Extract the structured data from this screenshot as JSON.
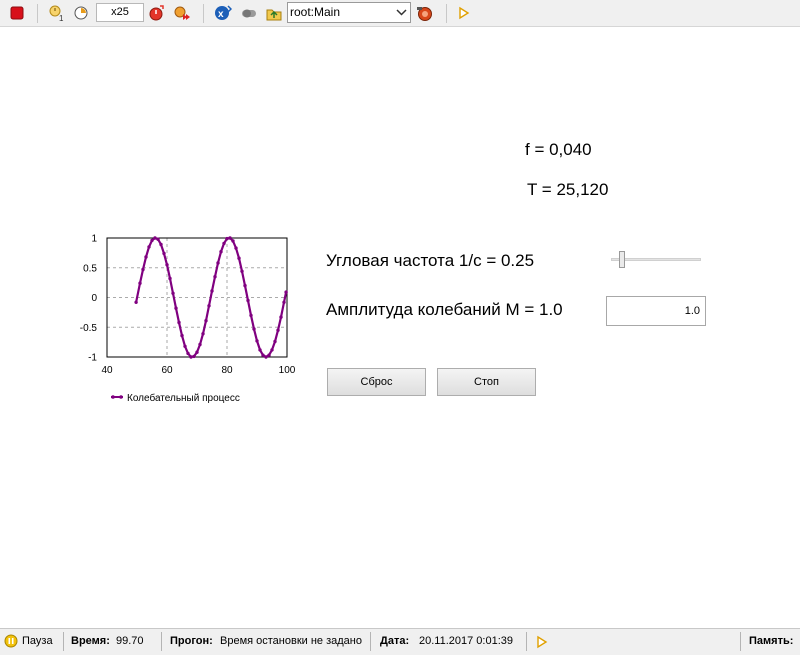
{
  "toolbar": {
    "speed": "x25",
    "agent": "root:Main",
    "icons": [
      "stop-icon",
      "run-until-icon",
      "step-icon",
      "speed-up-icon",
      "run-fast-icon",
      "navigate-to-agent-icon",
      "toggle-icon",
      "up-level-icon",
      "chevron-down-icon",
      "camera-icon",
      "play-icon"
    ]
  },
  "main": {
    "f_text": "f = 0,040",
    "T_text": "T = 25,120",
    "omega_label": "Угловая частота 1/с = 0.25",
    "amp_label": "Амплитуда колебаний М = 1.0",
    "amp_value": "1.0",
    "omega_slider_fraction": 0.1,
    "reset_label": "Сброс",
    "stop_label": "Стоп"
  },
  "chart_data": {
    "type": "line",
    "title": "",
    "xlabel": "",
    "ylabel": "",
    "xlim": [
      40,
      100
    ],
    "ylim": [
      -1,
      1
    ],
    "xticks": [
      "40",
      "60",
      "80",
      "100"
    ],
    "yticks": [
      "1",
      "0.5",
      "0",
      "-0.5",
      "-1"
    ],
    "grid": true,
    "legend": "bottom",
    "series": [
      {
        "name": "Колебательный процесс",
        "color": "#800080",
        "x": [
          49.7,
          51,
          52,
          53,
          54,
          55,
          56,
          57,
          58,
          59,
          60,
          61,
          62,
          63,
          64,
          65,
          66,
          67,
          68,
          69,
          70,
          71,
          72,
          73,
          74,
          75,
          76,
          77,
          78,
          79,
          80,
          81,
          82,
          83,
          84,
          85,
          86,
          87,
          88,
          89,
          90,
          91,
          92,
          93,
          94,
          95,
          96,
          97,
          98,
          99,
          99.7
        ],
        "y": [
          -0.08,
          0.24,
          0.47,
          0.68,
          0.85,
          0.96,
          1.0,
          0.98,
          0.89,
          0.74,
          0.55,
          0.32,
          0.07,
          -0.18,
          -0.42,
          -0.64,
          -0.82,
          -0.94,
          -1.0,
          -0.99,
          -0.92,
          -0.79,
          -0.61,
          -0.39,
          -0.14,
          0.11,
          0.35,
          0.58,
          0.77,
          0.91,
          0.99,
          1.0,
          0.95,
          0.83,
          0.66,
          0.44,
          0.2,
          -0.05,
          -0.3,
          -0.53,
          -0.73,
          -0.88,
          -0.97,
          -1.0,
          -0.97,
          -0.88,
          -0.74,
          -0.55,
          -0.33,
          -0.08,
          0.09
        ]
      }
    ]
  },
  "status": {
    "state": "Пауза",
    "time_label": "Время:",
    "time_value": "99.70",
    "run_label": "Прогон:",
    "run_value": "Время остановки не задано",
    "date_label": "Дата:",
    "date_value": "20.11.2017 0:01:39",
    "memory_label": "Память:"
  }
}
